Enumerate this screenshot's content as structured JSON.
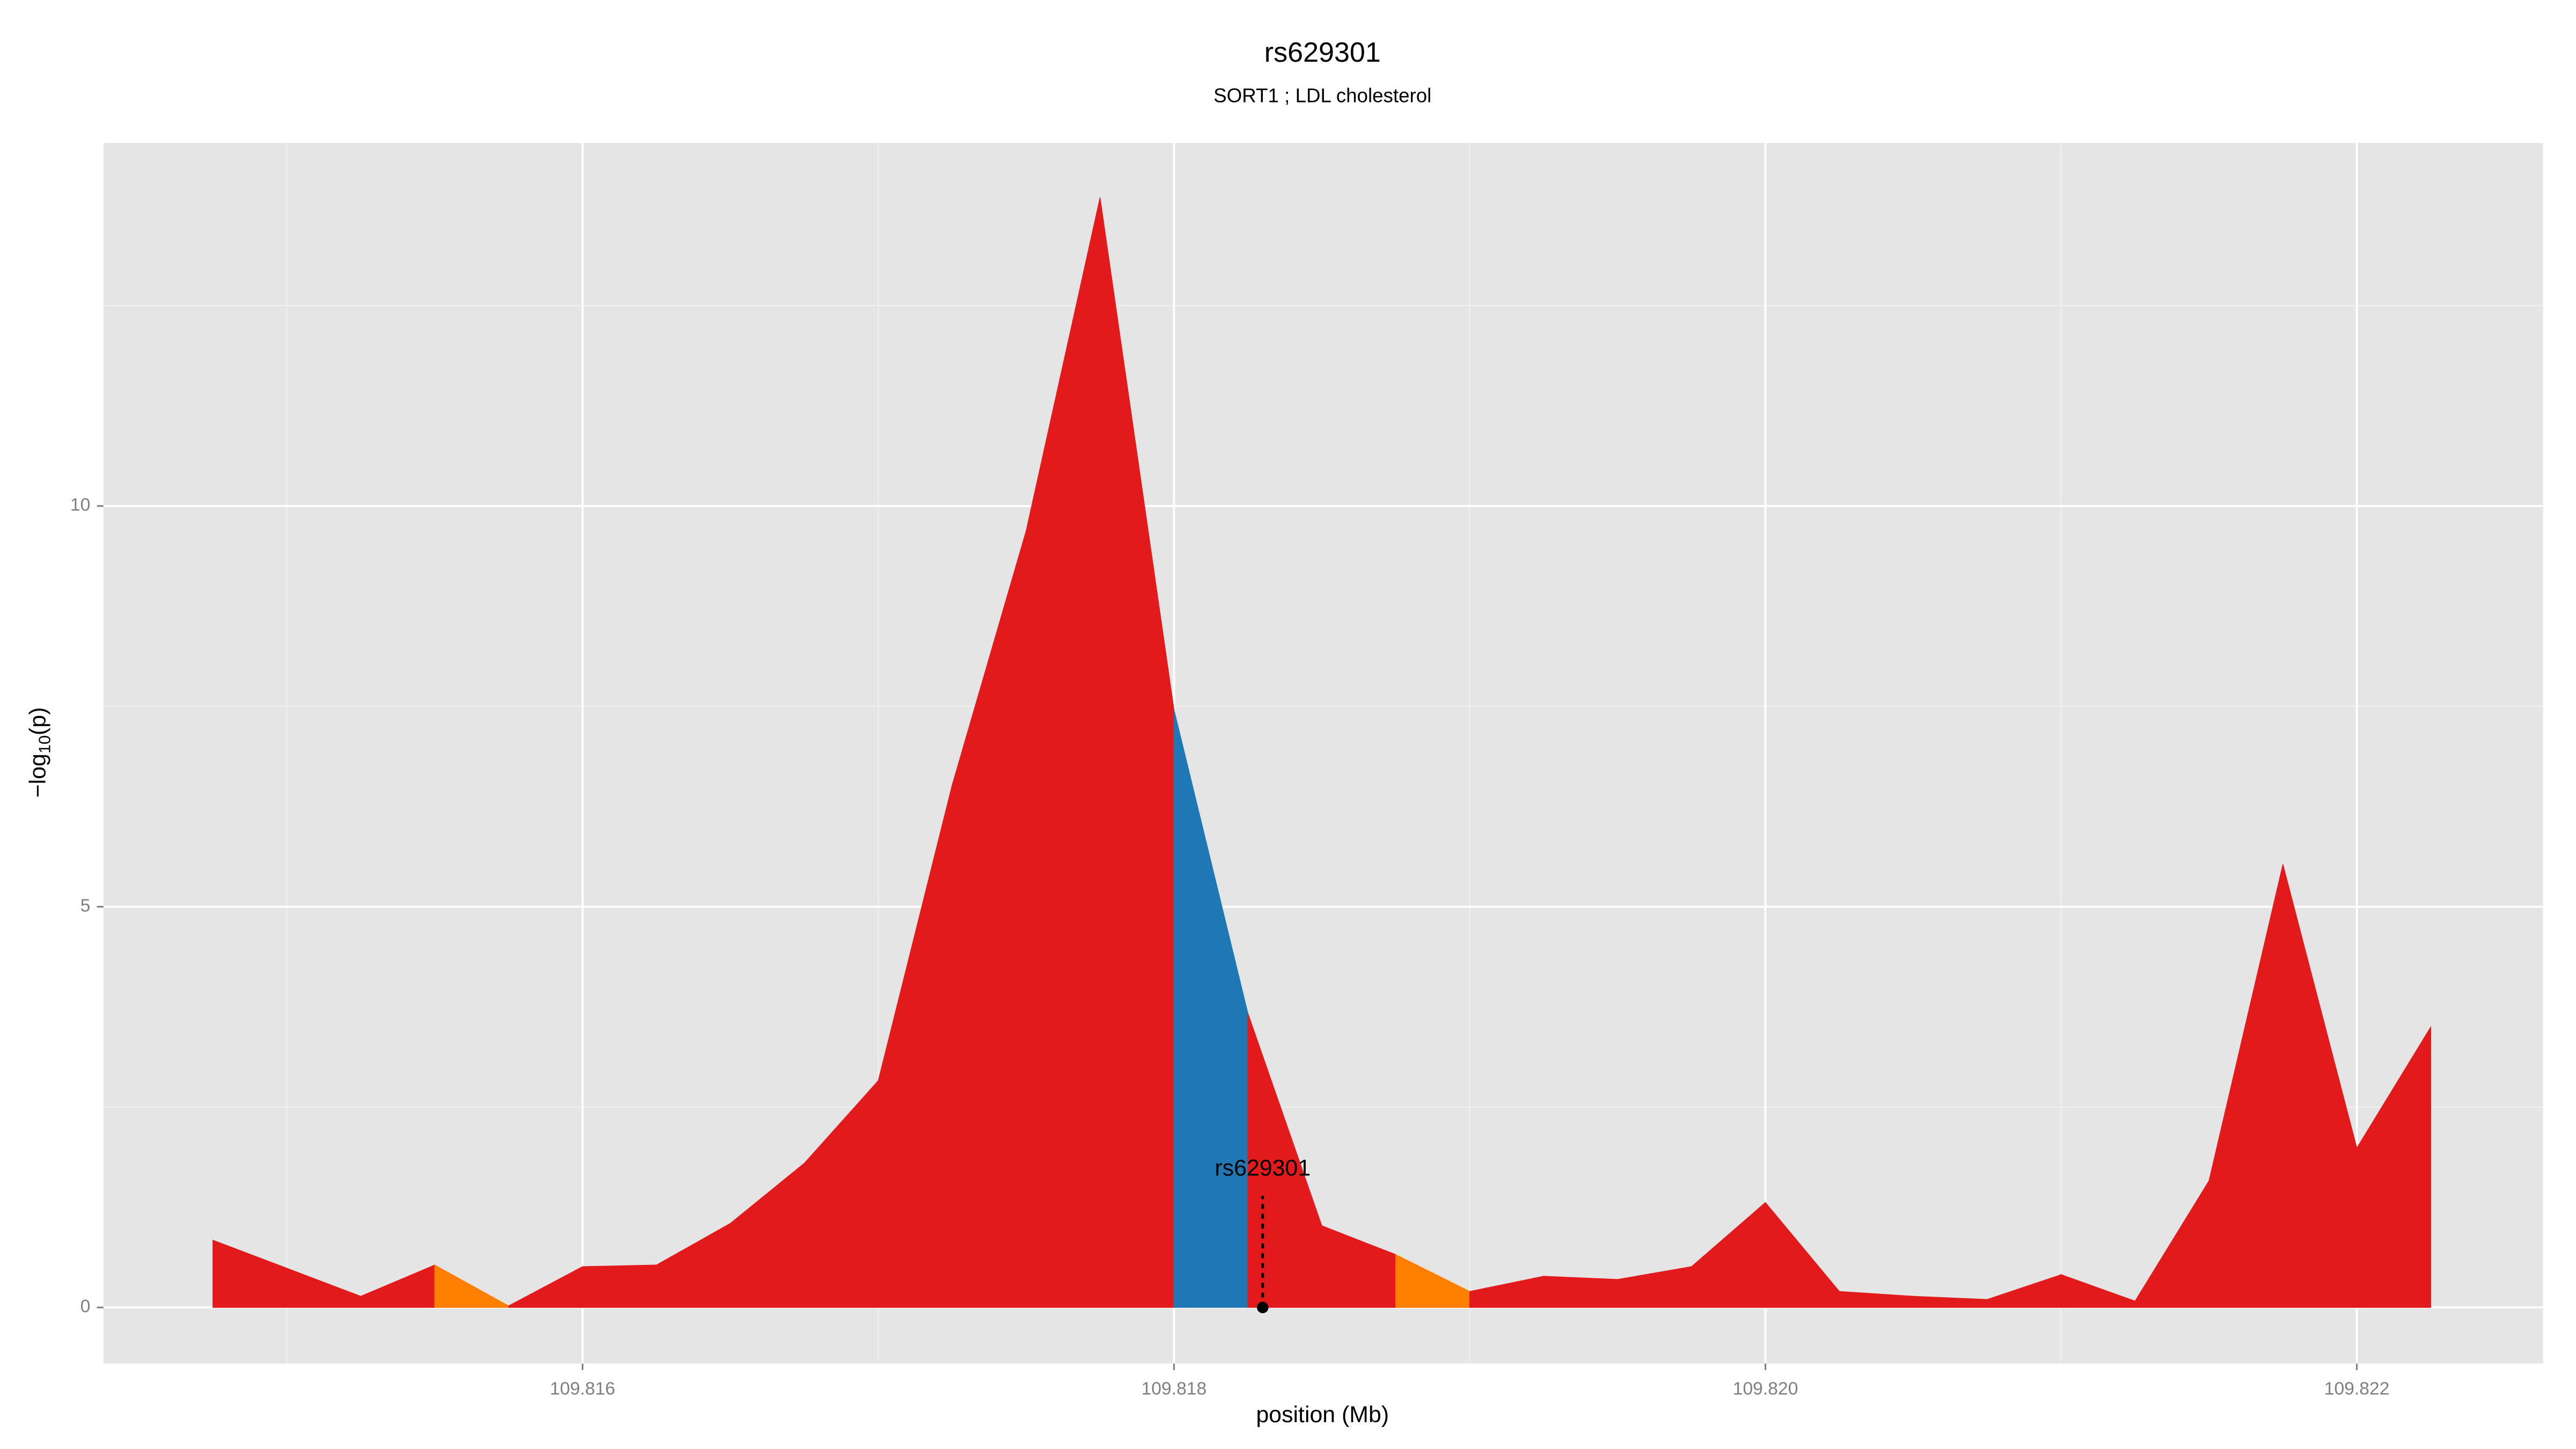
{
  "chart_data": {
    "type": "area",
    "title": "rs629301",
    "subtitle": "SORT1 ; LDL cholesterol",
    "x_label": "position (Mb)",
    "y_label": {
      "prefix": "−log",
      "subscript": "10",
      "suffix": "(p)"
    },
    "series": [
      {
        "x": [
          109.81475,
          109.81525,
          109.8155,
          109.81575,
          109.816,
          109.81625,
          109.8165,
          109.81675,
          109.817,
          109.81725,
          109.8175,
          109.81775,
          109.818,
          109.81825,
          109.8185,
          109.81875,
          109.819,
          109.81925,
          109.8195,
          109.81975,
          109.82,
          109.82025,
          109.8205,
          109.82075,
          109.821,
          109.82125,
          109.8215,
          109.82175,
          109.822,
          109.82225
        ],
        "values": [
          0.84,
          0.14,
          0.53,
          0.02,
          0.51,
          0.53,
          1.05,
          1.8,
          2.83,
          6.52,
          9.69,
          13.85,
          7.46,
          3.67,
          1.02,
          0.66,
          0.2,
          0.39,
          0.35,
          0.51,
          1.31,
          0.2,
          0.14,
          0.1,
          0.41,
          0.08,
          1.58,
          5.53,
          1.99,
          3.5
        ],
        "segment_colors": [
          "#e31a1c",
          "#e31a1c",
          "#ff7f00",
          "#e31a1c",
          "#e31a1c",
          "#e31a1c",
          "#e31a1c",
          "#e31a1c",
          "#e31a1c",
          "#e31a1c",
          "#e31a1c",
          "#e31a1c",
          "#1f78b4",
          "#e31a1c",
          "#e31a1c",
          "#ff7f00",
          "#e31a1c",
          "#e31a1c",
          "#e31a1c",
          "#e31a1c",
          "#e31a1c",
          "#e31a1c",
          "#e31a1c",
          "#e31a1c",
          "#e31a1c",
          "#e31a1c",
          "#e31a1c",
          "#e31a1c",
          "#e31a1c"
        ]
      }
    ],
    "annotation": {
      "text": "rs629301",
      "x": 109.8183,
      "y": 0
    },
    "xlim": [
      109.81438,
      109.82263
    ],
    "ylim": [
      -0.7,
      14.53
    ],
    "xticks": [
      109.816,
      109.818,
      {
        "value": 109.82,
        "label": "109.820"
      },
      109.822
    ],
    "yticks": [
      0,
      5,
      10
    ],
    "xminor": [
      109.815,
      109.817,
      109.819,
      109.821
    ],
    "yminor": [
      2.5,
      7.5,
      12.5
    ],
    "grid": true
  }
}
